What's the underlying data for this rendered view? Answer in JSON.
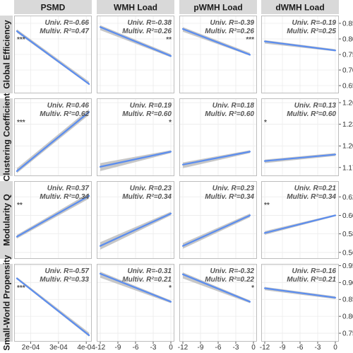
{
  "chart_data": {
    "type": "line",
    "title": "",
    "columns": [
      "PSMD",
      "WMH Load",
      "pWMH Load",
      "dWMH Load"
    ],
    "rows": [
      "Global Efficiency",
      "Clustering Coefficient",
      "Modularity Q",
      "Small-World Propensity"
    ],
    "x_axes": [
      {
        "range": [
          0.00014,
          0.00042
        ],
        "ticks": [
          0.0002,
          0.0003,
          0.0004
        ],
        "tick_labels": [
          "2e-04",
          "3e-04",
          "4e-04"
        ]
      },
      {
        "range": [
          -12.6,
          0.6
        ],
        "ticks": [
          -12,
          -9,
          -6,
          -3,
          0
        ],
        "tick_labels": [
          "-12",
          "-9",
          "-6",
          "-3",
          "0"
        ]
      },
      {
        "range": [
          -12.6,
          0.6
        ],
        "ticks": [
          -12,
          -9,
          -6,
          -3,
          0
        ],
        "tick_labels": [
          "-12",
          "-9",
          "-6",
          "-3",
          "0"
        ]
      },
      {
        "range": [
          -12.6,
          0.6
        ],
        "ticks": [
          -12,
          -9,
          -6,
          -3,
          0
        ],
        "tick_labels": [
          "-12",
          "-9",
          "-6",
          "-3",
          "0"
        ]
      }
    ],
    "y_axes": [
      {
        "range": [
          0.625,
          0.875
        ],
        "ticks": [
          0.65,
          0.7,
          0.75,
          0.8,
          0.85
        ],
        "tick_labels": [
          "0.65",
          "0.70",
          "0.75",
          "0.80",
          "0.85"
        ]
      },
      {
        "range": [
          1.158,
          1.266
        ],
        "ticks": [
          1.17,
          1.2,
          1.23,
          1.26
        ],
        "tick_labels": [
          "1.17",
          "1.20",
          "1.23",
          "1.26"
        ]
      },
      {
        "range": [
          0.553,
          0.637
        ],
        "ticks": [
          0.56,
          0.58,
          0.6,
          0.62
        ],
        "tick_labels": [
          "0.56",
          "0.58",
          "0.60",
          "0.62"
        ]
      },
      {
        "range": [
          0.725,
          0.955
        ],
        "ticks": [
          0.75,
          0.8,
          0.85,
          0.9,
          0.95
        ],
        "tick_labels": [
          "0.75",
          "0.80",
          "0.85",
          "0.90",
          "0.95"
        ]
      }
    ],
    "panels": [
      [
        {
          "univ": "Univ. R=-0.66",
          "multiv": "Multiv. R²=0.47",
          "sig": "***",
          "line": [
            [
              0.00015,
              0.825
            ],
            [
              0.00041,
              0.655
            ]
          ],
          "ci": [
            [
              0.005,
              0.006
            ],
            [
              0.003,
              0.008
            ]
          ]
        },
        {
          "univ": "Univ. R=-0.38",
          "multiv": "Multiv. R²=0.26",
          "sig": "**",
          "line": [
            [
              -12,
              0.838
            ],
            [
              0,
              0.745
            ]
          ],
          "ci": [
            [
              0.01,
              0.006
            ],
            [
              0.004,
              0.006
            ]
          ]
        },
        {
          "univ": "Univ. R=-0.39",
          "multiv": "Multiv. R²=0.26",
          "sig": "***",
          "line": [
            [
              -12,
              0.832
            ],
            [
              -0.6,
              0.749
            ]
          ],
          "ci": [
            [
              0.009,
              0.006
            ],
            [
              0.003,
              0.006
            ]
          ]
        },
        {
          "univ": "Univ. R=-0.19",
          "multiv": "Multiv. R²=0.25",
          "sig": "",
          "line": [
            [
              -12,
              0.792
            ],
            [
              0,
              0.763
            ]
          ],
          "ci": [
            [
              0.007,
              0.004
            ],
            [
              0.003,
              0.004
            ]
          ]
        }
      ],
      [
        {
          "univ": "Univ. R=0.46",
          "multiv": "Multiv. R²=0.62",
          "sig": "***",
          "line": [
            [
              0.00015,
              1.165
            ],
            [
              0.00041,
              1.247
            ]
          ],
          "ci": [
            [
              0.003,
              0.004
            ],
            [
              0.004,
              0.004
            ]
          ]
        },
        {
          "univ": "Univ. R=0.19",
          "multiv": "Multiv. R²=0.60",
          "sig": "*",
          "line": [
            [
              -12,
              1.171
            ],
            [
              0,
              1.192
            ]
          ],
          "ci": [
            [
              0.006,
              0.005
            ],
            [
              0.002,
              0.002
            ]
          ]
        },
        {
          "univ": "Univ. R=0.18",
          "multiv": "Multiv. R²=0.60",
          "sig": "",
          "line": [
            [
              -12,
              1.174
            ],
            [
              -0.6,
              1.192
            ]
          ],
          "ci": [
            [
              0.005,
              0.003
            ],
            [
              0.002,
              0.002
            ]
          ]
        },
        {
          "univ": "Univ. R=0.13",
          "multiv": "Multiv. R²=0.60",
          "sig": "*",
          "line": [
            [
              -12,
              1.179
            ],
            [
              0,
              1.188
            ]
          ],
          "ci": [
            [
              0.003,
              0.002
            ],
            [
              0.002,
              0.002
            ]
          ]
        }
      ],
      [
        {
          "univ": "Univ. R=0.37",
          "multiv": "Multiv. R²=0.34",
          "sig": "**",
          "line": [
            [
              0.00015,
              0.577
            ],
            [
              0.00041,
              0.621
            ]
          ],
          "ci": [
            [
              0.002,
              0.002
            ],
            [
              0.003,
              0.003
            ]
          ]
        },
        {
          "univ": "Univ. R=0.23",
          "multiv": "Multiv. R²=0.34",
          "sig": "",
          "line": [
            [
              -12,
              0.567
            ],
            [
              0,
              0.602
            ]
          ],
          "ci": [
            [
              0.004,
              0.004
            ],
            [
              0.002,
              0.002
            ]
          ]
        },
        {
          "univ": "Univ. R=0.23",
          "multiv": "Multiv. R²=0.34",
          "sig": "",
          "line": [
            [
              -12,
              0.567
            ],
            [
              -0.6,
              0.6
            ]
          ],
          "ci": [
            [
              0.003,
              0.003
            ],
            [
              0.002,
              0.002
            ]
          ]
        },
        {
          "univ": "Univ. R=0.21",
          "multiv": "Multiv. R²=0.34",
          "sig": "**",
          "line": [
            [
              -12,
              0.581
            ],
            [
              0,
              0.6
            ]
          ],
          "ci": [
            [
              0.002,
              0.002
            ],
            [
              0.001,
              0.001
            ]
          ]
        }
      ],
      [
        {
          "univ": "Univ. R=-0.57",
          "multiv": "Multiv. R²=0.33",
          "sig": "***",
          "line": [
            [
              0.00015,
              0.912
            ],
            [
              0.00041,
              0.744
            ]
          ],
          "ci": [
            [
              0.003,
              0.004
            ],
            [
              0.004,
              0.008
            ]
          ]
        },
        {
          "univ": "Univ. R=-0.31",
          "multiv": "Multiv. R²=0.21",
          "sig": "*",
          "line": [
            [
              -12,
              0.926
            ],
            [
              0,
              0.843
            ]
          ],
          "ci": [
            [
              0.012,
              0.006
            ],
            [
              0.004,
              0.004
            ]
          ]
        },
        {
          "univ": "Univ. R=-0.32",
          "multiv": "Multiv. R²=0.22",
          "sig": "*",
          "line": [
            [
              -12,
              0.924
            ],
            [
              -0.6,
              0.843
            ]
          ],
          "ci": [
            [
              0.012,
              0.006
            ],
            [
              0.004,
              0.004
            ]
          ]
        },
        {
          "univ": "Univ. R=-0.16",
          "multiv": "Multiv. R²=0.21",
          "sig": "",
          "line": [
            [
              -12,
              0.883
            ],
            [
              0,
              0.855
            ]
          ],
          "ci": [
            [
              0.006,
              0.004
            ],
            [
              0.004,
              0.004
            ]
          ]
        }
      ]
    ],
    "grid": true,
    "legend": "none",
    "colors": {
      "line": "#5b8def",
      "ribbon": "#bdbdbd",
      "strip_bg": "#d9d9d9",
      "panel_border": "#bdbdbd",
      "grid": "#ebebeb",
      "text": "#1a1a1a",
      "stat_text": "#555555"
    }
  }
}
